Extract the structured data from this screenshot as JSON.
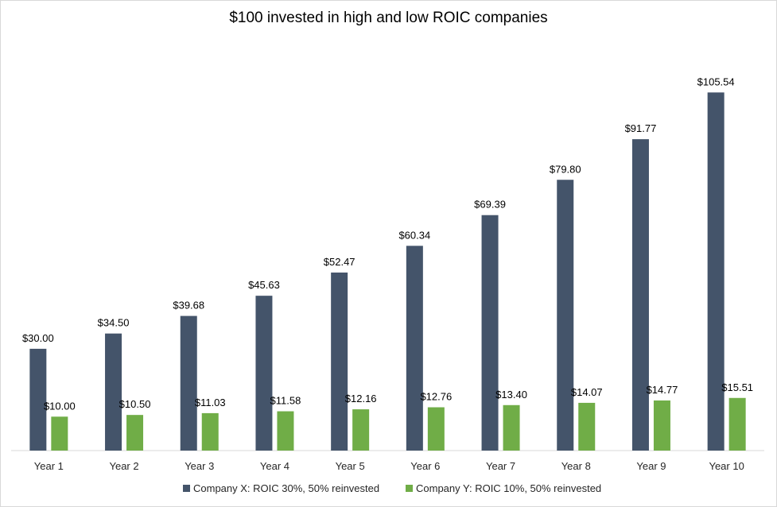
{
  "chart_data": {
    "type": "bar",
    "title": "$100 invested in high and low ROIC companies",
    "categories": [
      "Year 1",
      "Year 2",
      "Year 3",
      "Year 4",
      "Year 5",
      "Year 6",
      "Year 7",
      "Year 8",
      "Year 9",
      "Year 10"
    ],
    "series": [
      {
        "name": "Company X: ROIC 30%, 50% reinvested",
        "color": "#44546A",
        "values": [
          30.0,
          34.5,
          39.68,
          45.63,
          52.47,
          60.34,
          69.39,
          79.8,
          91.77,
          105.54
        ],
        "labels": [
          "$30.00",
          "$34.50",
          "$39.68",
          "$45.63",
          "$52.47",
          "$60.34",
          "$69.39",
          "$79.80",
          "$91.77",
          "$105.54"
        ]
      },
      {
        "name": "Company Y: ROIC 10%, 50% reinvested",
        "color": "#70AD47",
        "values": [
          10.0,
          10.5,
          11.03,
          11.58,
          12.16,
          12.76,
          13.4,
          14.07,
          14.77,
          15.51
        ],
        "labels": [
          "$10.00",
          "$10.50",
          "$11.03",
          "$11.58",
          "$12.16",
          "$12.76",
          "$13.40",
          "$14.07",
          "$14.77",
          "$15.51"
        ]
      }
    ],
    "ylim": [
      0,
      110
    ],
    "grid": false,
    "legend": "bottom"
  }
}
